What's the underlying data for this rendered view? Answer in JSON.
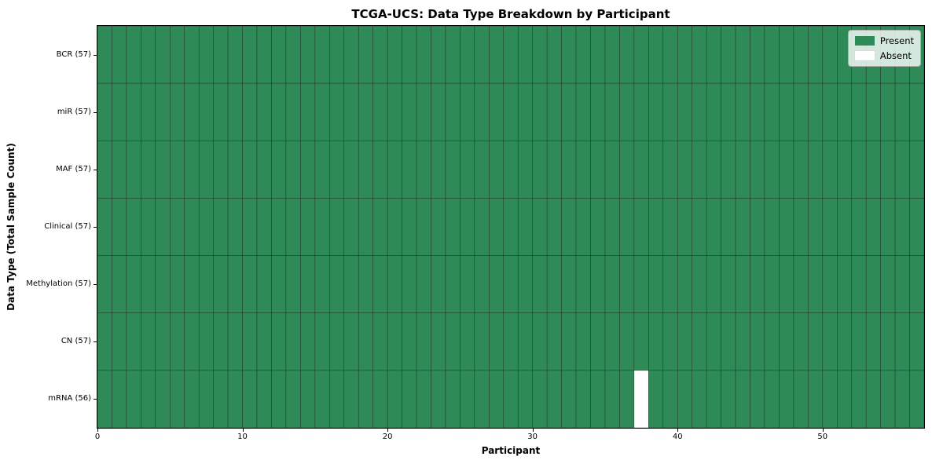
{
  "chart_data": {
    "type": "heatmap",
    "title": "TCGA-UCS: Data Type Breakdown by Participant",
    "xlabel": "Participant",
    "ylabel": "Data Type (Total Sample Count)",
    "x_range": [
      0,
      57
    ],
    "n_participants": 57,
    "x_ticks": [
      {
        "value": 0,
        "label": "0"
      },
      {
        "value": 10,
        "label": "10"
      },
      {
        "value": 20,
        "label": "20"
      },
      {
        "value": 30,
        "label": "30"
      },
      {
        "value": 40,
        "label": "40"
      },
      {
        "value": 50,
        "label": "50"
      }
    ],
    "rows": [
      {
        "data_type": "BCR",
        "label": "BCR (57)",
        "present_count": 57,
        "absent_participants": []
      },
      {
        "data_type": "miR",
        "label": "miR (57)",
        "present_count": 57,
        "absent_participants": []
      },
      {
        "data_type": "MAF",
        "label": "MAF (57)",
        "present_count": 57,
        "absent_participants": []
      },
      {
        "data_type": "Clinical",
        "label": "Clinical (57)",
        "present_count": 57,
        "absent_participants": []
      },
      {
        "data_type": "Methylation",
        "label": "Methylation (57)",
        "present_count": 57,
        "absent_participants": []
      },
      {
        "data_type": "CN",
        "label": "CN (57)",
        "present_count": 57,
        "absent_participants": []
      },
      {
        "data_type": "mRNA",
        "label": "mRNA (56)",
        "present_count": 56,
        "absent_participants": [
          37
        ]
      }
    ],
    "legend": {
      "position": "upper right",
      "entries": [
        {
          "label": "Present",
          "color": "#2e8b57"
        },
        {
          "label": "Absent",
          "color": "#ffffff"
        }
      ]
    },
    "colors": {
      "present": "#2e8b57",
      "absent": "#ffffff",
      "cell_edge": "#1c1c1c",
      "plot_border": "#000000"
    },
    "grid": "cell-edges-on"
  }
}
